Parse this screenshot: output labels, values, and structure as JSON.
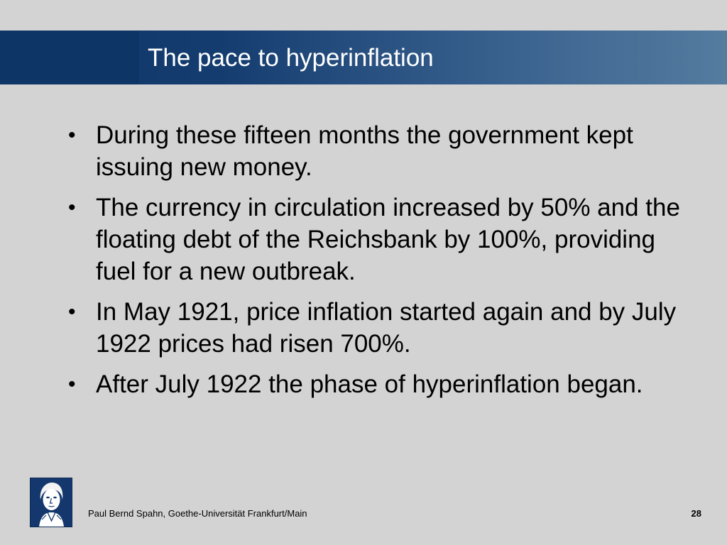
{
  "slide": {
    "title": "The pace to hyperinflation",
    "bullets": [
      "During these fifteen months the government kept issuing new money.",
      "The currency in circulation increased by 50% and the floating debt of the Reichsbank by 100%, providing fuel for a new outbreak.",
      "In May 1921, price inflation started again and by July 1922 prices had risen 700%.",
      "After July 1922 the phase of hyperinflation began."
    ],
    "bullet_symbol": "•"
  },
  "footer": {
    "author": "Paul Bernd Spahn, Goethe-Universität Frankfurt/Main",
    "page_number": "28"
  },
  "colors": {
    "background": "#d3d3d3",
    "title_bar_dark": "#0d3566",
    "title_bar_light": "#547c9f",
    "title_text": "#ffffff"
  },
  "icons": {
    "logo": "goethe-portrait-logo"
  }
}
